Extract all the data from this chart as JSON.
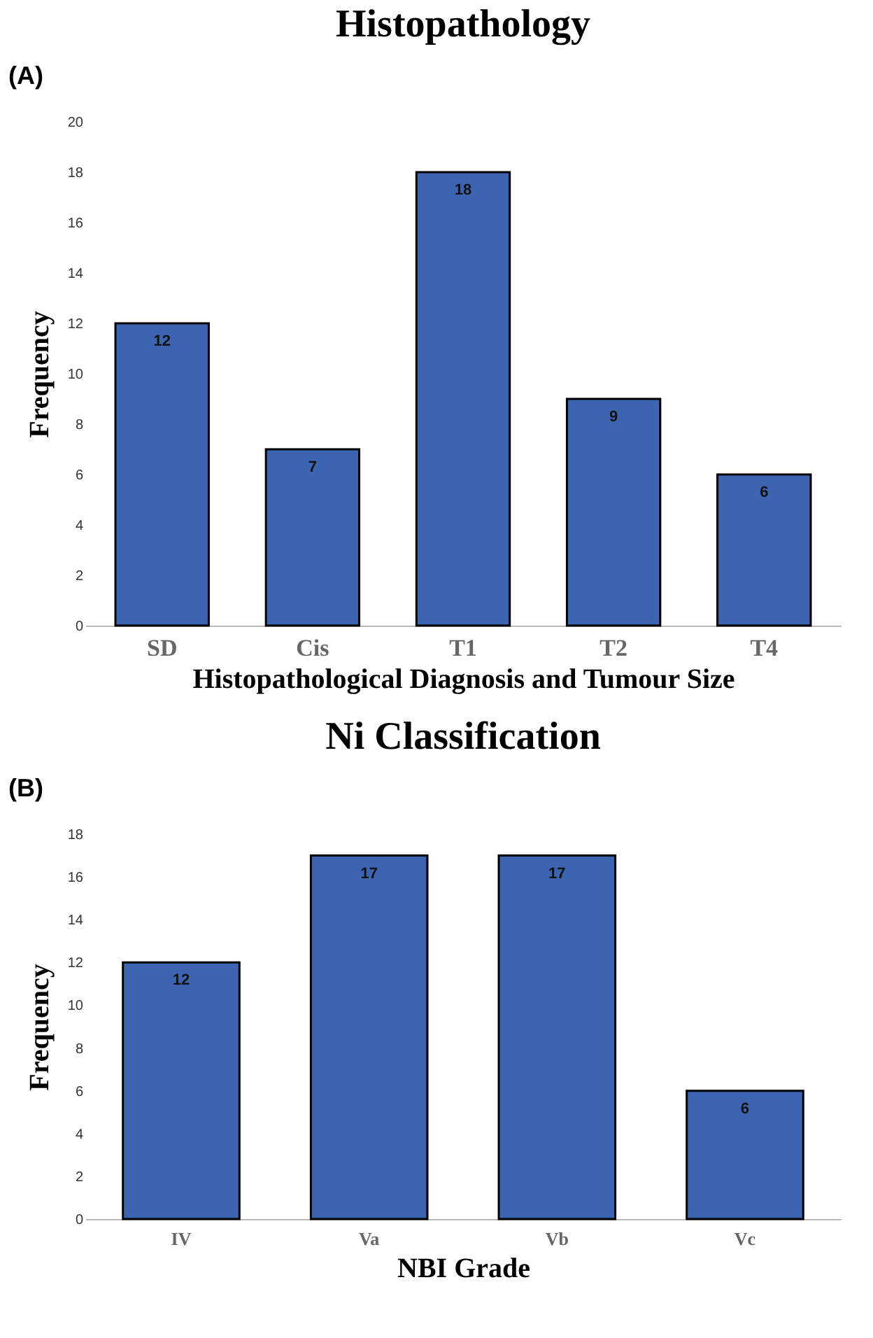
{
  "chart_data": [
    {
      "type": "bar",
      "title": "Histopathology",
      "xlabel": "Histopathological Diagnosis and Tumour Size",
      "ylabel": "Frequency",
      "annotations": [
        "(A)"
      ],
      "categories": [
        "SD",
        "Cis",
        "T1",
        "T2",
        "T4"
      ],
      "values": [
        12,
        7,
        18,
        9,
        6
      ],
      "color": "#3d64b0",
      "ylim": [
        0,
        20
      ],
      "yticks": [
        0,
        2,
        4,
        6,
        8,
        10,
        12,
        14,
        16,
        18,
        20
      ],
      "data_labels": true
    },
    {
      "type": "bar",
      "title": "Ni Classification",
      "xlabel": "NBI Grade",
      "ylabel": "Frequency",
      "annotations": [
        "(B)"
      ],
      "categories": [
        "IV",
        "Va",
        "Vb",
        "Vc"
      ],
      "values": [
        12,
        17,
        17,
        6
      ],
      "color": "#3d64b0",
      "ylim": [
        0,
        18
      ],
      "yticks": [
        0,
        2,
        4,
        6,
        8,
        10,
        12,
        14,
        16,
        18
      ],
      "data_labels": true
    }
  ]
}
